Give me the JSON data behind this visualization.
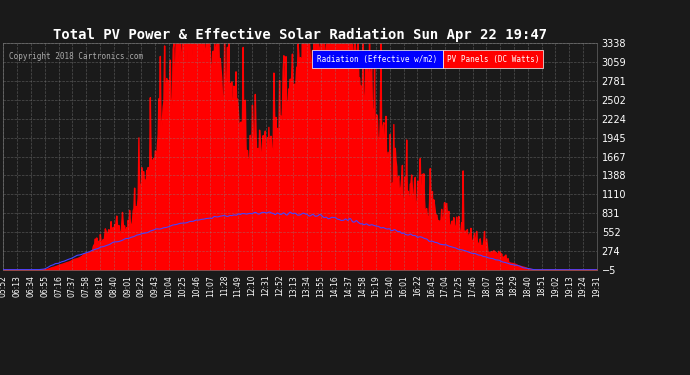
{
  "title": "Total PV Power & Effective Solar Radiation Sun Apr 22 19:47",
  "copyright": "Copyright 2018 Cartronics.com",
  "legend_radiation": "Radiation (Effective w/m2)",
  "legend_pv": "PV Panels (DC Watts)",
  "ymin": -4.7,
  "ymax": 3337.8,
  "yticks": [
    3337.8,
    3059.3,
    2780.8,
    2502.2,
    2223.7,
    1945.1,
    1666.6,
    1388.0,
    1109.5,
    830.9,
    552.4,
    273.8,
    -4.7
  ],
  "background_color": "#1a1a1a",
  "plot_bg_color": "#1a1a1a",
  "grid_color": "#888888",
  "pv_color": "#ff0000",
  "radiation_color": "#4444ff",
  "title_color": "#ffffff",
  "tick_label_color": "#ffffff",
  "xtick_labels": [
    "05:52",
    "06:13",
    "06:34",
    "06:55",
    "07:16",
    "07:37",
    "07:58",
    "08:19",
    "08:40",
    "09:01",
    "09:22",
    "09:43",
    "10:04",
    "10:25",
    "10:46",
    "11:07",
    "11:28",
    "11:49",
    "12:10",
    "12:31",
    "12:52",
    "13:13",
    "13:34",
    "13:55",
    "14:16",
    "14:37",
    "14:58",
    "15:19",
    "15:40",
    "16:01",
    "16:22",
    "16:43",
    "17:04",
    "17:25",
    "17:46",
    "18:07",
    "18:18",
    "18:29",
    "18:40",
    "18:51",
    "19:02",
    "19:13",
    "19:24",
    "19:31"
  ],
  "num_xticks": 44,
  "num_points": 832
}
